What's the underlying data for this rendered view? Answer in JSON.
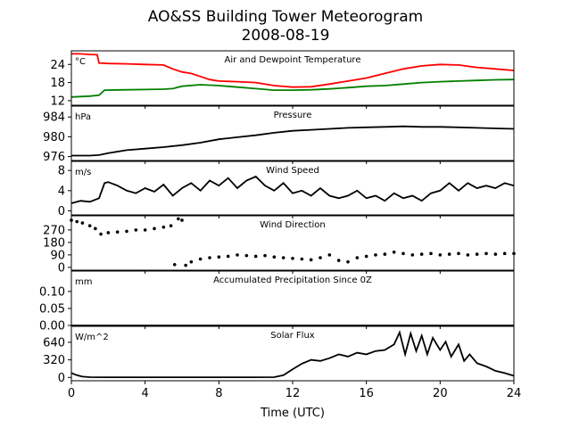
{
  "title": [
    "AO&SS Building Tower Meteorogram",
    "2008-08-19"
  ],
  "xlabel": "Time (UTC)",
  "chart_data": [
    {
      "type": "line",
      "panel_title": "Air and Dewpoint Temperature",
      "unit": "°C",
      "xlim": [
        0,
        24
      ],
      "ylim": [
        10.5,
        28.5
      ],
      "yticks": [
        12,
        18,
        24
      ],
      "series": [
        {
          "color": "#ff0000",
          "x": [
            0,
            0.5,
            1,
            1.4,
            1.5,
            2,
            3,
            4,
            5,
            5.5,
            6,
            6.5,
            7,
            7.5,
            8,
            9,
            10,
            11,
            12,
            13,
            14,
            15,
            16,
            17,
            18,
            19,
            20,
            21,
            22,
            23,
            24
          ],
          "values": [
            27.5,
            27.5,
            27.3,
            27.2,
            24.5,
            24.3,
            24.2,
            24.0,
            23.8,
            22.5,
            21.5,
            21.0,
            20.0,
            19.0,
            18.5,
            18.3,
            18.0,
            17.0,
            16.5,
            16.6,
            17.5,
            18.5,
            19.5,
            21.0,
            22.5,
            23.5,
            24.0,
            23.8,
            23.0,
            22.5,
            22.0
          ]
        },
        {
          "color": "#008000",
          "x": [
            0,
            1,
            1.5,
            1.8,
            3,
            4,
            5,
            5.5,
            6,
            7,
            8,
            9,
            10,
            11,
            12,
            13,
            14,
            15,
            16,
            17,
            18,
            19,
            20,
            21,
            22,
            23,
            24
          ],
          "values": [
            13.2,
            13.5,
            13.8,
            15.5,
            15.6,
            15.7,
            15.8,
            16.0,
            16.8,
            17.3,
            17.0,
            16.5,
            16.0,
            15.5,
            15.5,
            15.6,
            15.9,
            16.3,
            16.8,
            17.0,
            17.5,
            18.0,
            18.3,
            18.5,
            18.7,
            18.9,
            19.0
          ]
        }
      ]
    },
    {
      "type": "line",
      "panel_title": "Pressure",
      "unit": "hPa",
      "xlim": [
        0,
        24
      ],
      "ylim": [
        975.2,
        986.2
      ],
      "yticks": [
        976,
        980,
        984
      ],
      "series": [
        {
          "color": "#000000",
          "x": [
            0,
            1,
            1.5,
            2,
            3,
            4,
            5,
            6,
            7,
            8,
            9,
            10,
            11,
            12,
            13,
            14,
            15,
            16,
            17,
            18,
            19,
            20,
            21,
            22,
            23,
            24
          ],
          "values": [
            976.2,
            976.2,
            976.3,
            976.7,
            977.3,
            977.6,
            977.9,
            978.3,
            978.8,
            979.5,
            979.9,
            980.3,
            980.8,
            981.2,
            981.4,
            981.6,
            981.8,
            981.9,
            982.0,
            982.1,
            982.0,
            982.0,
            981.9,
            981.8,
            981.7,
            981.6
          ]
        }
      ]
    },
    {
      "type": "line",
      "panel_title": "Wind Speed",
      "unit": "m/s",
      "xlim": [
        0,
        24
      ],
      "ylim": [
        -0.8,
        9.8
      ],
      "yticks": [
        0,
        4,
        8
      ],
      "series": [
        {
          "color": "#000000",
          "x": [
            0,
            0.5,
            1,
            1.5,
            1.8,
            2,
            2.5,
            3,
            3.5,
            4,
            4.5,
            5,
            5.5,
            6,
            6.5,
            7,
            7.5,
            8,
            8.5,
            9,
            9.5,
            10,
            10.5,
            11,
            11.5,
            12,
            12.5,
            13,
            13.5,
            14,
            14.5,
            15,
            15.5,
            16,
            16.5,
            17,
            17.5,
            18,
            18.5,
            19,
            19.5,
            20,
            20.5,
            21,
            21.5,
            22,
            22.5,
            23,
            23.5,
            24
          ],
          "values": [
            1.5,
            2.0,
            1.8,
            2.5,
            5.5,
            5.7,
            5.0,
            4.0,
            3.5,
            4.5,
            3.8,
            5.2,
            3.0,
            4.5,
            5.5,
            4.0,
            6.0,
            5.0,
            6.5,
            4.5,
            6.0,
            6.8,
            5.0,
            4.0,
            5.5,
            3.5,
            4.0,
            3.0,
            4.5,
            3.0,
            2.5,
            3.0,
            4.0,
            2.5,
            3.0,
            2.0,
            3.5,
            2.5,
            3.0,
            2.0,
            3.5,
            4.0,
            5.5,
            4.0,
            5.5,
            4.5,
            5.0,
            4.5,
            5.5,
            5.0
          ]
        }
      ]
    },
    {
      "type": "scatter",
      "panel_title": "Wind Direction",
      "unit": "",
      "xlim": [
        0,
        24
      ],
      "ylim": [
        -20,
        372
      ],
      "yticks": [
        0,
        90,
        180,
        270
      ],
      "series": [
        {
          "color": "#000000",
          "x": [
            0,
            0.3,
            0.6,
            1,
            1.3,
            1.6,
            2,
            2.5,
            3,
            3.5,
            4,
            4.5,
            5,
            5.4,
            5.6,
            5.8,
            6,
            6.2,
            6.5,
            7,
            7.5,
            8,
            8.5,
            9,
            9.5,
            10,
            10.5,
            11,
            11.5,
            12,
            12.5,
            13,
            13.5,
            14,
            14.5,
            15,
            15.5,
            16,
            16.5,
            17,
            17.5,
            18,
            18.5,
            19,
            19.5,
            20,
            20.5,
            21,
            21.5,
            22,
            22.5,
            23,
            23.5,
            24
          ],
          "values": [
            340,
            330,
            320,
            300,
            280,
            240,
            250,
            255,
            260,
            270,
            270,
            280,
            290,
            300,
            20,
            350,
            340,
            15,
            40,
            60,
            70,
            75,
            80,
            90,
            85,
            80,
            85,
            75,
            70,
            65,
            60,
            55,
            70,
            90,
            50,
            40,
            70,
            80,
            90,
            95,
            110,
            100,
            90,
            95,
            100,
            90,
            95,
            100,
            90,
            95,
            100,
            95,
            100,
            100
          ]
        }
      ]
    },
    {
      "type": "line",
      "panel_title": "Accumulated Precipitation Since 0Z",
      "unit": "mm",
      "xlim": [
        0,
        24
      ],
      "ylim": [
        0,
        0.16
      ],
      "yticks": [
        0.0,
        0.05,
        0.1
      ],
      "ytick_labels": [
        "0.00",
        "0.05",
        "0.10"
      ],
      "series": [
        {
          "color": "#000000",
          "x": [
            0,
            24
          ],
          "values": [
            0,
            0
          ]
        }
      ]
    },
    {
      "type": "line",
      "panel_title": "Solar Flux",
      "unit": "W/m^2",
      "xlim": [
        0,
        24
      ],
      "ylim": [
        -60,
        930
      ],
      "yticks": [
        0,
        320,
        640
      ],
      "series": [
        {
          "color": "#000000",
          "x": [
            0,
            0.3,
            0.6,
            1,
            2,
            4,
            6,
            8,
            10,
            11,
            11.5,
            12,
            12.5,
            13,
            13.5,
            14,
            14.5,
            15,
            15.5,
            16,
            16.5,
            17,
            17.5,
            17.8,
            18.1,
            18.4,
            18.7,
            19,
            19.3,
            19.6,
            20,
            20.3,
            20.6,
            21,
            21.3,
            21.6,
            22,
            22.5,
            23,
            23.5,
            24
          ],
          "values": [
            80,
            40,
            15,
            5,
            3,
            3,
            3,
            3,
            3,
            5,
            40,
            150,
            250,
            320,
            300,
            350,
            420,
            380,
            450,
            420,
            480,
            500,
            600,
            820,
            420,
            800,
            480,
            760,
            420,
            720,
            500,
            650,
            380,
            600,
            300,
            420,
            260,
            200,
            120,
            80,
            30
          ]
        }
      ]
    }
  ],
  "xticks": [
    0,
    4,
    8,
    12,
    16,
    20,
    24
  ]
}
